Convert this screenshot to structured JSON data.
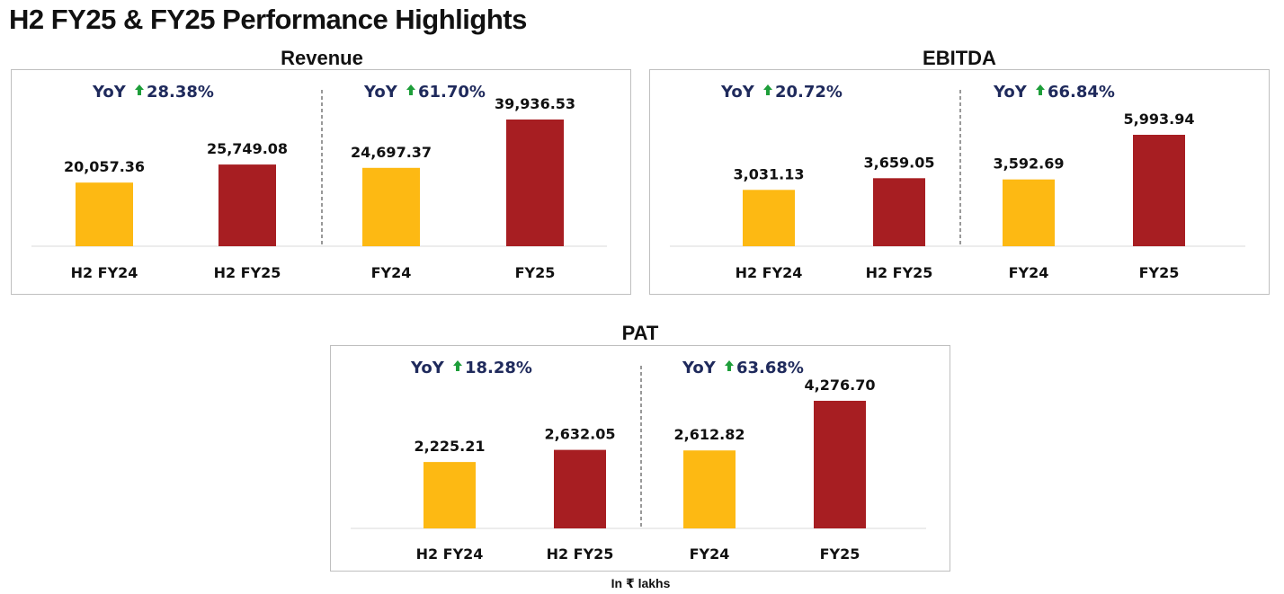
{
  "page": {
    "title": "H2 FY25 & FY25 Performance Highlights",
    "footnote": "In ₹ lakhs"
  },
  "colors": {
    "prior": "#FDB913",
    "current": "#A71E22",
    "yoy_text": "#1F2A5C",
    "arrow": "#1E9E3A"
  },
  "chart_data": [
    {
      "type": "bar",
      "title": "Revenue",
      "categories": [
        "H2 FY24",
        "H2 FY25",
        "FY24",
        "FY25"
      ],
      "values": [
        20057.36,
        25749.08,
        24697.37,
        39936.53
      ],
      "value_labels": [
        "20,057.36",
        "25,749.08",
        "24,697.37",
        "39,936.53"
      ],
      "yoy": [
        {
          "prefix": "YoY",
          "value": "28.38%"
        },
        {
          "prefix": "YoY",
          "value": "61.70%"
        }
      ],
      "grid": false,
      "legend": "none"
    },
    {
      "type": "bar",
      "title": "EBITDA",
      "categories": [
        "H2 FY24",
        "H2 FY25",
        "FY24",
        "FY25"
      ],
      "values": [
        3031.13,
        3659.05,
        3592.69,
        5993.94
      ],
      "value_labels": [
        "3,031.13",
        "3,659.05",
        "3,592.69",
        "5,993.94"
      ],
      "yoy": [
        {
          "prefix": "YoY",
          "value": "20.72%"
        },
        {
          "prefix": "YoY",
          "value": "66.84%"
        }
      ],
      "grid": false,
      "legend": "none"
    },
    {
      "type": "bar",
      "title": "PAT",
      "categories": [
        "H2 FY24",
        "H2 FY25",
        "FY24",
        "FY25"
      ],
      "values": [
        2225.21,
        2632.05,
        2612.82,
        4276.7
      ],
      "value_labels": [
        "2,225.21",
        "2,632.05",
        "2,612.82",
        "4,276.70"
      ],
      "yoy": [
        {
          "prefix": "YoY",
          "value": "18.28%"
        },
        {
          "prefix": "YoY",
          "value": "63.68%"
        }
      ],
      "grid": false,
      "legend": "none"
    }
  ]
}
